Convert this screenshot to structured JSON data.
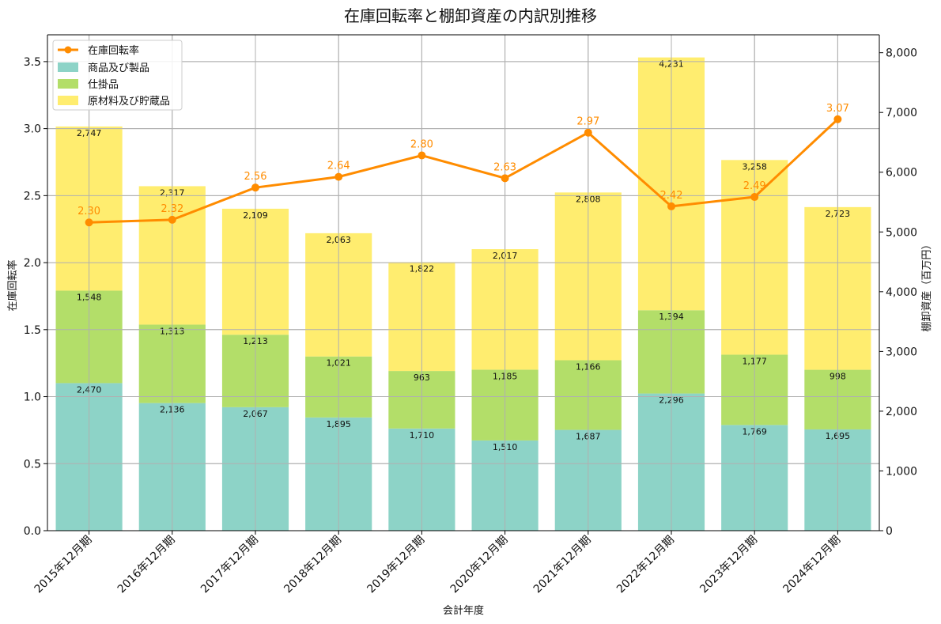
{
  "chart_data": {
    "type": "bar",
    "title": "在庫回転率と棚卸資産の内訳別推移",
    "xlabel": "会計年度",
    "ylabel_left": "在庫回転率",
    "ylabel_right": "棚卸資産（百万円）",
    "categories": [
      "2015年12月期",
      "2016年12月期",
      "2017年12月期",
      "2018年12月期",
      "2019年12月期",
      "2020年12月期",
      "2021年12月期",
      "2022年12月期",
      "2023年12月期",
      "2024年12月期"
    ],
    "stack_series": [
      {
        "name": "商品及び製品",
        "color": "#8dd3c7",
        "values": [
          2470,
          2136,
          2067,
          1895,
          1710,
          1510,
          1687,
          2296,
          1769,
          1695
        ],
        "labels": [
          "2,470",
          "2,136",
          "2,067",
          "1,895",
          "1,710",
          "1,510",
          "1,687",
          "2,296",
          "1,769",
          "1,695"
        ]
      },
      {
        "name": "仕掛品",
        "color": "#b3de69",
        "values": [
          1548,
          1313,
          1213,
          1021,
          963,
          1185,
          1166,
          1394,
          1177,
          998
        ],
        "labels": [
          "1,548",
          "1,313",
          "1,213",
          "1,021",
          "963",
          "1,185",
          "1,166",
          "1,394",
          "1,177",
          "998"
        ]
      },
      {
        "name": "原材料及び貯蔵品",
        "color": "#ffed6f",
        "values": [
          2747,
          2317,
          2109,
          2063,
          1822,
          2017,
          2808,
          4231,
          3258,
          2723
        ],
        "labels": [
          "2,747",
          "2,317",
          "2,109",
          "2,063",
          "1,822",
          "2,017",
          "2,808",
          "4,231",
          "3,258",
          "2,723"
        ]
      }
    ],
    "line_series": {
      "name": "在庫回転率",
      "color": "#ff8c00",
      "values": [
        2.3,
        2.32,
        2.56,
        2.64,
        2.8,
        2.63,
        2.97,
        2.42,
        2.49,
        3.07
      ],
      "labels": [
        "2.30",
        "2.32",
        "2.56",
        "2.64",
        "2.80",
        "2.63",
        "2.97",
        "2.42",
        "2.49",
        "3.07"
      ]
    },
    "left_ylim": [
      0,
      3.7
    ],
    "left_ticks": [
      "0.0",
      "0.5",
      "1.0",
      "1.5",
      "2.0",
      "2.5",
      "3.0",
      "3.5"
    ],
    "right_ylim": [
      0,
      8300
    ],
    "right_ticks": [
      "0",
      "1,000",
      "2,000",
      "3,000",
      "4,000",
      "5,000",
      "6,000",
      "7,000",
      "8,000"
    ],
    "grid": true,
    "legend_position": "top-left"
  }
}
